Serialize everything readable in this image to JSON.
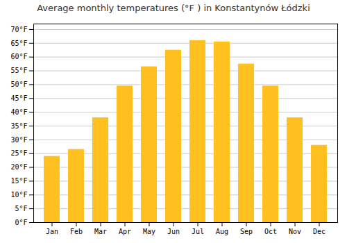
{
  "chart_data": {
    "type": "bar",
    "title": "Average monthly temperatures (°F ) in Konstantynów Łódzki",
    "categories": [
      "Jan",
      "Feb",
      "Mar",
      "Apr",
      "May",
      "Jun",
      "Jul",
      "Aug",
      "Sep",
      "Oct",
      "Nov",
      "Dec"
    ],
    "values": [
      24,
      26.5,
      38,
      49.5,
      56.5,
      62.5,
      66,
      65.5,
      57.5,
      49.5,
      38,
      28
    ],
    "color": "#FFC020",
    "ylim": [
      0,
      72
    ],
    "yticks": [
      {
        "value": 0,
        "label": "0°F"
      },
      {
        "value": 5,
        "label": "5°F"
      },
      {
        "value": 10,
        "label": "10°F"
      },
      {
        "value": 15,
        "label": "15°F"
      },
      {
        "value": 20,
        "label": "20°F"
      },
      {
        "value": 25,
        "label": "25°F"
      },
      {
        "value": 30,
        "label": "30°F"
      },
      {
        "value": 35,
        "label": "35°F"
      },
      {
        "value": 40,
        "label": "40°F"
      },
      {
        "value": 45,
        "label": "45°F"
      },
      {
        "value": 50,
        "label": "50°F"
      },
      {
        "value": 55,
        "label": "55°F"
      },
      {
        "value": 60,
        "label": "60°F"
      },
      {
        "value": 65,
        "label": "65°F"
      },
      {
        "value": 70,
        "label": "70°F"
      }
    ],
    "grid": true
  }
}
